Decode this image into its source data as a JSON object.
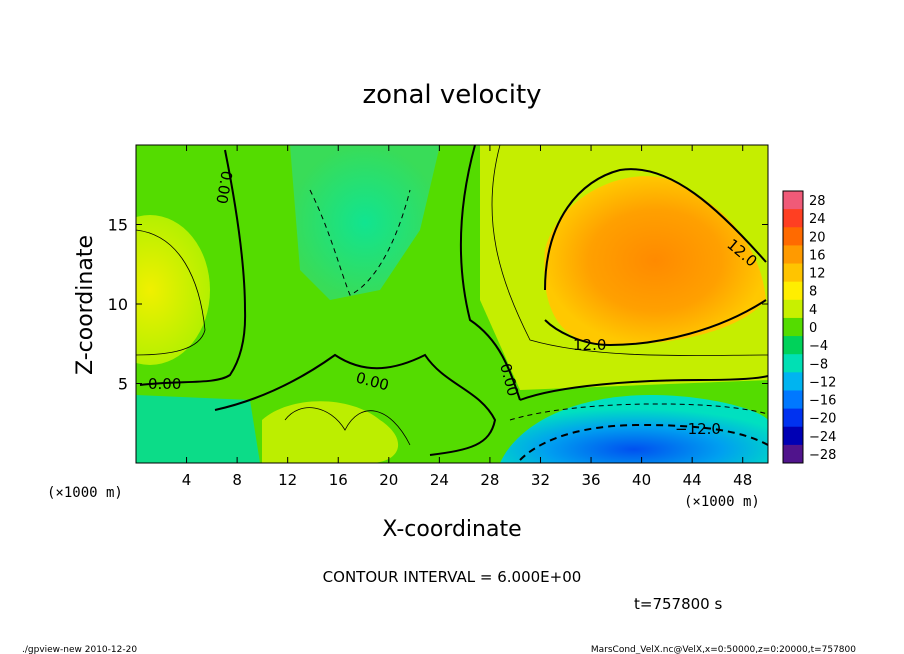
{
  "chart_data": {
    "type": "heatmap",
    "title": "zonal velocity",
    "xlabel": "X-coordinate",
    "ylabel": "Z-coordinate",
    "x_unit_label": "(×1000 m)",
    "y_unit_label": "(×1000 m)",
    "xlim": [
      0,
      50
    ],
    "ylim": [
      0,
      20
    ],
    "x_ticks": [
      "4",
      "8",
      "12",
      "16",
      "20",
      "24",
      "28",
      "32",
      "36",
      "40",
      "44",
      "48"
    ],
    "x_tick_values": [
      4,
      8,
      12,
      16,
      20,
      24,
      28,
      32,
      36,
      40,
      44,
      48
    ],
    "y_ticks": [
      "5",
      "10",
      "15"
    ],
    "y_tick_values": [
      5,
      10,
      15
    ],
    "colorbar": {
      "labels": [
        "28",
        "24",
        "20",
        "16",
        "12",
        "8",
        "4",
        "0",
        "−4",
        "−8",
        "−12",
        "−16",
        "−20",
        "−24",
        "−28"
      ],
      "levels": [
        28,
        24,
        20,
        16,
        12,
        8,
        4,
        0,
        -4,
        -8,
        -12,
        -16,
        -20,
        -24,
        -28
      ],
      "colors": [
        "#f05a78",
        "#ff3f22",
        "#ff6a00",
        "#ff9a00",
        "#ffc400",
        "#ffee00",
        "#c8f000",
        "#54dc00",
        "#00d25a",
        "#00e0b4",
        "#00b4f0",
        "#0078ff",
        "#0032f0",
        "#0000b4",
        "#50148c"
      ]
    },
    "contour_labels": [
      "12.0",
      "12.0",
      "0.00",
      "0.00",
      "0.00",
      "0.00",
      "−12.0"
    ],
    "contour_interval_text": "CONTOUR INTERVAL = 6.000E+00",
    "grid": false,
    "legend": "colorbar-right"
  },
  "time_label": "t=757800 s",
  "footer": {
    "left": "./gpview-new  2010-12-20",
    "right": "MarsCond_VelX.nc@VelX,x=0:50000,z=0:20000,t=757800"
  }
}
